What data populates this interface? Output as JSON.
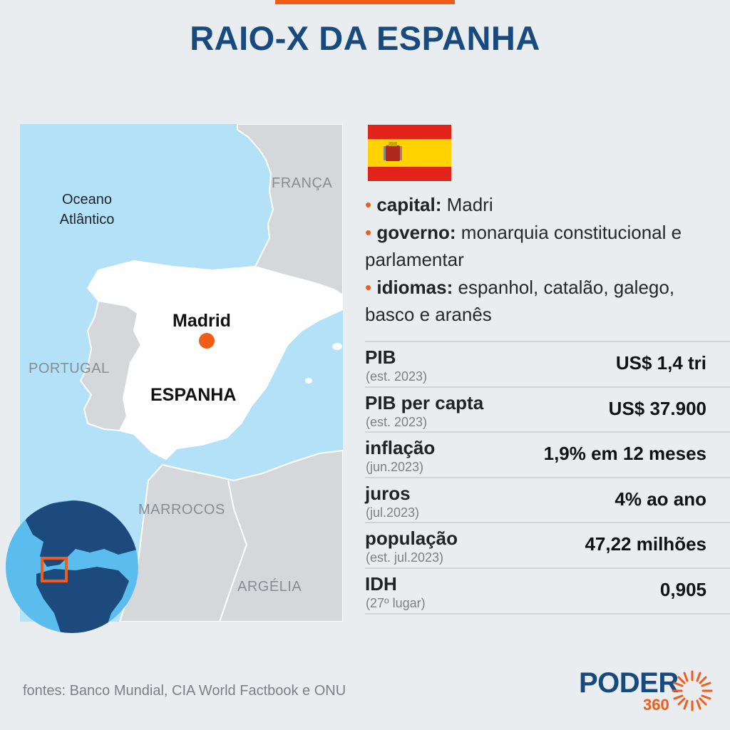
{
  "title": "RAIO-X DA ESPANHA",
  "map": {
    "ocean_label_line1": "Oceano",
    "ocean_label_line2": "Atlântico",
    "france": "FRANÇA",
    "portugal": "PORTUGAL",
    "spain": "ESPANHA",
    "capital_label": "Madrid",
    "morocco": "MARROCOS",
    "algeria": "ARGÉLIA",
    "colors": {
      "sea": "#b2e1f8",
      "land": "#d4d8db",
      "spain": "#ffffff",
      "marker": "#f25c19"
    }
  },
  "facts": {
    "capital_label": "capital:",
    "capital_value": " Madri",
    "government_label": "governo:",
    "government_value": " monarquia constitucional e parlamentar",
    "languages_label": "idiomas:",
    "languages_value": " espanhol, catalão, galego, basco  e aranês",
    "bullet": "•"
  },
  "stats": [
    {
      "name": "PIB",
      "note": "(est. 2023)",
      "value": "US$ 1,4 tri"
    },
    {
      "name": "PIB per capta",
      "note": "(est. 2023)",
      "value": "US$ 37.900"
    },
    {
      "name": "inflação",
      "note": "(jun.2023)",
      "value": "1,9% em 12 meses"
    },
    {
      "name": "juros",
      "note": "(jul.2023)",
      "value": "4% ao ano"
    },
    {
      "name": "população",
      "note": "(est. jul.2023)",
      "value": "47,22 milhões"
    },
    {
      "name": "IDH",
      "note": "(27º lugar)",
      "value": "0,905"
    }
  ],
  "sources": "fontes: Banco Mundial, CIA World Factbook e ONU",
  "logo": {
    "word": "PODER",
    "number": "360",
    "icon": "sunburst-icon"
  },
  "accent_color": "#f25c19",
  "brand_color": "#174a7e"
}
